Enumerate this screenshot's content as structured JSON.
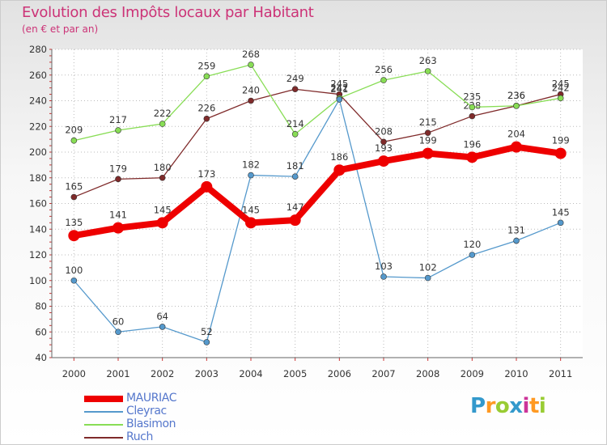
{
  "title": "Evolution des Impôts locaux par Habitant",
  "subtitle": "(en € et par an)",
  "brand": [
    "P",
    "r",
    "o",
    "x",
    "i",
    "t",
    "i"
  ],
  "brand_colors": [
    "#3399cc",
    "#ff9922",
    "#99cc33",
    "#3399cc",
    "#cc3399",
    "#ff9922",
    "#99cc33"
  ],
  "chart_data": {
    "type": "line",
    "title": "Evolution des Impôts locaux par Habitant",
    "subtitle": "(en € et par an)",
    "categories": [
      "2000",
      "2001",
      "2002",
      "2003",
      "2004",
      "2005",
      "2006",
      "2007",
      "2008",
      "2009",
      "2010",
      "2011"
    ],
    "ylim": [
      40,
      280
    ],
    "yticks": [
      40,
      60,
      80,
      100,
      120,
      140,
      160,
      180,
      200,
      220,
      240,
      260,
      280
    ],
    "grid": true,
    "legend": "bottom-left",
    "series": [
      {
        "name": "Ruch",
        "color": "#7f2a2a",
        "values": [
          165,
          179,
          180,
          226,
          240,
          249,
          245,
          208,
          215,
          228,
          236,
          245
        ]
      },
      {
        "name": "Blasimon",
        "color": "#88dd55",
        "values": [
          209,
          217,
          222,
          259,
          268,
          214,
          242,
          256,
          263,
          235,
          236,
          242
        ]
      },
      {
        "name": "Cleyrac",
        "color": "#5599cc",
        "values": [
          100,
          60,
          64,
          52,
          182,
          181,
          241,
          103,
          102,
          120,
          131,
          145
        ]
      },
      {
        "name": "MAURIAC",
        "color": "#ee0000",
        "values": [
          135,
          141,
          145,
          173,
          145,
          147,
          186,
          193,
          199,
          196,
          204,
          199
        ]
      }
    ]
  },
  "legend": [
    {
      "name": "MAURIAC",
      "color": "#ee0000"
    },
    {
      "name": "Cleyrac",
      "color": "#5599cc"
    },
    {
      "name": "Blasimon",
      "color": "#88dd55"
    },
    {
      "name": "Ruch",
      "color": "#7f2a2a"
    }
  ]
}
